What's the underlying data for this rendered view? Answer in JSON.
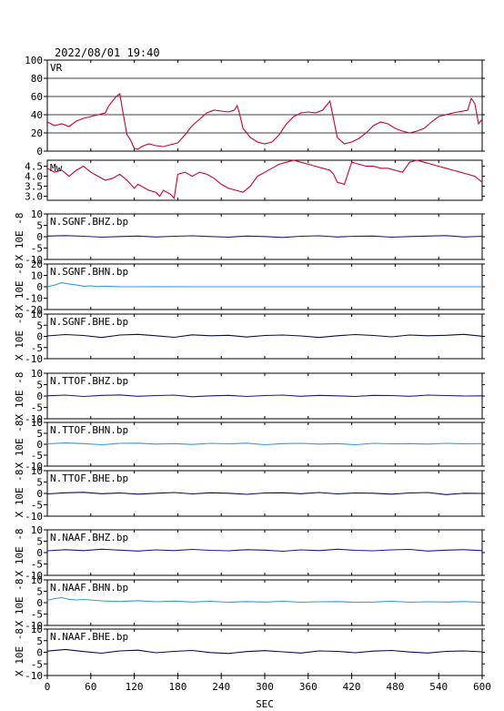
{
  "header": {
    "timestamp": "2022/08/01  19:40"
  },
  "colors": {
    "axis": "#000000",
    "vr_mw": "#cc0033",
    "bhz": "#1a1a8c",
    "bhn": "#3399dd",
    "bhe": "#0a0a55"
  },
  "chart_data": {
    "type": "line",
    "xlabel": "SEC",
    "xlim": [
      0,
      600
    ],
    "xticks": [
      "0",
      "60",
      "120",
      "180",
      "240",
      "300",
      "360",
      "420",
      "480",
      "540",
      "600"
    ],
    "panels": [
      {
        "label": "VR",
        "ylim": [
          0,
          100
        ],
        "yticks": [
          "0",
          "20",
          "40",
          "60",
          "80",
          "100"
        ],
        "grid": true,
        "color": "#cc0033",
        "series": {
          "x": [
            0,
            10,
            20,
            30,
            40,
            50,
            60,
            70,
            80,
            85,
            90,
            95,
            100,
            105,
            110,
            115,
            120,
            125,
            130,
            140,
            150,
            160,
            170,
            180,
            190,
            200,
            210,
            220,
            230,
            240,
            250,
            258,
            262,
            265,
            270,
            280,
            290,
            300,
            310,
            320,
            330,
            340,
            350,
            360,
            370,
            380,
            385,
            390,
            395,
            400,
            410,
            420,
            430,
            440,
            450,
            460,
            470,
            480,
            490,
            500,
            510,
            520,
            530,
            540,
            550,
            560,
            580,
            585,
            590,
            595,
            600
          ],
          "values": [
            32,
            28,
            30,
            27,
            33,
            36,
            38,
            40,
            42,
            50,
            55,
            60,
            63,
            40,
            18,
            12,
            3,
            2,
            5,
            8,
            6,
            5,
            7,
            9,
            18,
            28,
            35,
            42,
            45,
            44,
            43,
            45,
            50,
            42,
            25,
            15,
            10,
            8,
            10,
            18,
            30,
            38,
            42,
            43,
            42,
            45,
            50,
            55,
            35,
            15,
            8,
            10,
            14,
            20,
            28,
            32,
            30,
            25,
            22,
            20,
            22,
            25,
            32,
            38,
            40,
            42,
            45,
            58,
            52,
            30,
            35
          ]
        }
      },
      {
        "label": "Mw",
        "ylim": [
          2.8,
          4.8
        ],
        "yticks": [
          "3.0",
          "3.5",
          "4.0",
          "4.5"
        ],
        "grid": false,
        "color": "#cc0033",
        "series": {
          "x": [
            0,
            10,
            20,
            30,
            40,
            50,
            60,
            70,
            80,
            90,
            100,
            110,
            115,
            120,
            125,
            130,
            140,
            150,
            155,
            160,
            170,
            175,
            180,
            190,
            200,
            210,
            220,
            230,
            240,
            250,
            260,
            270,
            280,
            290,
            300,
            310,
            320,
            330,
            340,
            350,
            360,
            370,
            380,
            390,
            395,
            400,
            410,
            420,
            430,
            440,
            450,
            460,
            470,
            480,
            490,
            500,
            510,
            520,
            530,
            540,
            550,
            560,
            570,
            580,
            590,
            600
          ],
          "values": [
            4.4,
            4.2,
            4.3,
            4.0,
            4.3,
            4.5,
            4.2,
            4.0,
            3.8,
            3.9,
            4.1,
            3.8,
            3.6,
            3.4,
            3.6,
            3.5,
            3.3,
            3.2,
            3.0,
            3.3,
            3.1,
            2.9,
            4.1,
            4.2,
            4.0,
            4.2,
            4.1,
            3.9,
            3.6,
            3.4,
            3.3,
            3.2,
            3.5,
            4.0,
            4.2,
            4.4,
            4.6,
            4.7,
            4.8,
            4.7,
            4.6,
            4.5,
            4.4,
            4.3,
            4.1,
            3.7,
            3.6,
            4.7,
            4.6,
            4.5,
            4.5,
            4.4,
            4.4,
            4.3,
            4.2,
            4.7,
            4.8,
            4.7,
            4.6,
            4.5,
            4.4,
            4.3,
            4.2,
            4.1,
            4.0,
            3.7
          ]
        }
      },
      {
        "label": "N.SGNF.BHZ.bp",
        "ylim": [
          -10,
          10
        ],
        "yticks": [
          "-10",
          "-5",
          "0",
          "5",
          "10"
        ],
        "ylabel": "X 10E -8",
        "grid": false,
        "color": "#1a1a8c",
        "series": {
          "x": [
            0,
            25,
            50,
            75,
            100,
            125,
            150,
            175,
            200,
            225,
            250,
            275,
            300,
            325,
            350,
            375,
            400,
            425,
            450,
            475,
            500,
            525,
            550,
            575,
            600
          ],
          "values": [
            0.3,
            0.5,
            0.2,
            -0.2,
            0.1,
            0.3,
            -0.1,
            0.2,
            0.4,
            0.1,
            -0.2,
            0.3,
            0.1,
            -0.3,
            0.2,
            0.4,
            -0.1,
            0.2,
            0.3,
            -0.2,
            0.1,
            0.3,
            0.5,
            -0.1,
            0.2
          ]
        }
      },
      {
        "label": "N.SGNF.BHN.bp",
        "ylim": [
          -20,
          20
        ],
        "yticks": [
          "-20",
          "-10",
          "0",
          "10",
          "20"
        ],
        "ylabel": "X 10E -8",
        "grid": false,
        "color": "#3399dd",
        "series": {
          "x": [
            0,
            10,
            20,
            30,
            40,
            50,
            60,
            70,
            80,
            100,
            120,
            150,
            200,
            250,
            300,
            350,
            400,
            450,
            500,
            550,
            600
          ],
          "values": [
            0,
            1.5,
            3.5,
            2.5,
            1.5,
            0.5,
            0.8,
            0.2,
            0.5,
            0.1,
            0,
            0.1,
            0,
            0,
            0,
            0,
            0,
            0,
            0,
            0,
            0
          ]
        }
      },
      {
        "label": "N.SGNF.BHE.bp",
        "ylim": [
          -10,
          10
        ],
        "yticks": [
          "-10",
          "-5",
          "0",
          "5",
          "10"
        ],
        "ylabel": "X 10E -8",
        "grid": false,
        "color": "#0a0a55",
        "series": {
          "x": [
            0,
            25,
            50,
            75,
            100,
            125,
            150,
            175,
            200,
            225,
            250,
            275,
            300,
            325,
            350,
            375,
            400,
            425,
            450,
            475,
            500,
            525,
            550,
            575,
            600
          ],
          "values": [
            0.2,
            0.8,
            0.4,
            -0.5,
            0.6,
            0.9,
            0.3,
            -0.4,
            0.7,
            0.3,
            0.5,
            -0.3,
            0.4,
            0.6,
            0.2,
            -0.5,
            0.3,
            0.8,
            0.4,
            -0.2,
            0.6,
            0.3,
            0.5,
            0.9,
            0.1
          ]
        }
      },
      {
        "label": "N.TTOF.BHZ.bp",
        "ylim": [
          -10,
          10
        ],
        "yticks": [
          "-10",
          "-5",
          "0",
          "5",
          "10"
        ],
        "ylabel": "X 10E -8",
        "grid": false,
        "color": "#1a1a8c",
        "series": {
          "x": [
            0,
            25,
            50,
            75,
            100,
            125,
            150,
            175,
            200,
            225,
            250,
            275,
            300,
            325,
            350,
            375,
            400,
            425,
            450,
            475,
            500,
            525,
            550,
            575,
            600
          ],
          "values": [
            0.1,
            0.4,
            -0.2,
            0.3,
            0.5,
            -0.1,
            0.2,
            0.4,
            -0.3,
            0.1,
            0.3,
            -0.2,
            0.2,
            0.4,
            -0.1,
            0.3,
            0.1,
            -0.2,
            0.3,
            0.2,
            -0.1,
            0.4,
            0.2,
            0,
            0.1
          ]
        }
      },
      {
        "label": "N.TTOF.BHN.bp",
        "ylim": [
          -10,
          10
        ],
        "yticks": [
          "-10",
          "-5",
          "0",
          "5",
          "10"
        ],
        "ylabel": "X 10E -8",
        "grid": false,
        "color": "#3399dd",
        "series": {
          "x": [
            0,
            25,
            50,
            75,
            100,
            125,
            150,
            175,
            200,
            225,
            250,
            275,
            300,
            325,
            350,
            375,
            400,
            425,
            450,
            475,
            500,
            525,
            550,
            575,
            600
          ],
          "values": [
            0.2,
            0.6,
            0.3,
            -0.2,
            0.4,
            0.5,
            0.1,
            0.3,
            -0.1,
            0.4,
            0.2,
            0.5,
            -0.2,
            0.3,
            0.4,
            0.1,
            0.3,
            -0.2,
            0.4,
            0.2,
            0.3,
            0.1,
            0.4,
            0.2,
            0.3
          ]
        }
      },
      {
        "label": "N.TTOF.BHE.bp",
        "ylim": [
          -10,
          10
        ],
        "yticks": [
          "-10",
          "-5",
          "0",
          "5",
          "10"
        ],
        "ylabel": "X 10E -8",
        "grid": false,
        "color": "#0a0a55",
        "series": {
          "x": [
            0,
            25,
            50,
            75,
            100,
            125,
            150,
            175,
            200,
            225,
            250,
            275,
            300,
            325,
            350,
            375,
            400,
            425,
            450,
            475,
            500,
            525,
            550,
            575,
            600
          ],
          "values": [
            -0.2,
            0.3,
            0.5,
            -0.1,
            0.2,
            -0.3,
            0.1,
            0.4,
            -0.2,
            0.3,
            0.1,
            -0.4,
            0.2,
            0.3,
            -0.1,
            0.4,
            -0.2,
            0.2,
            0.1,
            -0.3,
            0.2,
            0.4,
            -0.5,
            0.1,
            0
          ]
        }
      },
      {
        "label": "N.NAAF.BHZ.bp",
        "ylim": [
          -10,
          10
        ],
        "yticks": [
          "-10",
          "-5",
          "0",
          "5",
          "10"
        ],
        "ylabel": "X 10E -8",
        "grid": false,
        "color": "#1a1a8c",
        "series": {
          "x": [
            0,
            25,
            50,
            75,
            100,
            125,
            150,
            175,
            200,
            225,
            250,
            275,
            300,
            325,
            350,
            375,
            400,
            425,
            450,
            475,
            500,
            525,
            550,
            575,
            600
          ],
          "values": [
            0.8,
            1.3,
            0.9,
            1.5,
            1.1,
            0.7,
            1.2,
            0.9,
            1.4,
            1.0,
            0.8,
            1.3,
            1.1,
            0.6,
            1.2,
            0.9,
            1.5,
            1.0,
            0.8,
            1.2,
            1.4,
            0.7,
            1.1,
            1.3,
            0.9
          ]
        }
      },
      {
        "label": "N.NAAF.BHN.bp",
        "ylim": [
          -10,
          10
        ],
        "yticks": [
          "-10",
          "-5",
          "0",
          "5",
          "10"
        ],
        "ylabel": "X 10E -8",
        "grid": false,
        "color": "#3399dd",
        "series": {
          "x": [
            0,
            10,
            20,
            30,
            40,
            50,
            75,
            100,
            125,
            150,
            175,
            200,
            225,
            250,
            275,
            300,
            325,
            350,
            375,
            400,
            425,
            450,
            475,
            500,
            525,
            550,
            575,
            600
          ],
          "values": [
            1.0,
            1.8,
            2.2,
            1.5,
            1.2,
            1.4,
            0.8,
            0.5,
            0.9,
            0.4,
            0.7,
            0.3,
            0.6,
            0.2,
            0.5,
            0.3,
            0.6,
            0.2,
            0.4,
            0.5,
            0.2,
            0.3,
            0.6,
            0.2,
            0.4,
            0.3,
            0.5,
            0.2
          ]
        }
      },
      {
        "label": "N.NAAF.BHE.bp",
        "ylim": [
          -10,
          10
        ],
        "yticks": [
          "-10",
          "-5",
          "0",
          "5",
          "10"
        ],
        "ylabel": "X 10E -8",
        "grid": false,
        "color": "#0a0a55",
        "series": {
          "x": [
            0,
            25,
            50,
            75,
            100,
            125,
            150,
            175,
            200,
            225,
            250,
            275,
            300,
            325,
            350,
            375,
            400,
            425,
            450,
            475,
            500,
            525,
            550,
            575,
            600
          ],
          "values": [
            0.5,
            1.2,
            0.3,
            -0.4,
            0.6,
            0.9,
            -0.2,
            0.4,
            0.8,
            -0.1,
            -0.5,
            0.3,
            0.7,
            0.2,
            -0.3,
            0.6,
            0.4,
            -0.2,
            0.5,
            0.8,
            0.1,
            -0.3,
            0.4,
            0.6,
            0.2
          ]
        }
      }
    ]
  }
}
